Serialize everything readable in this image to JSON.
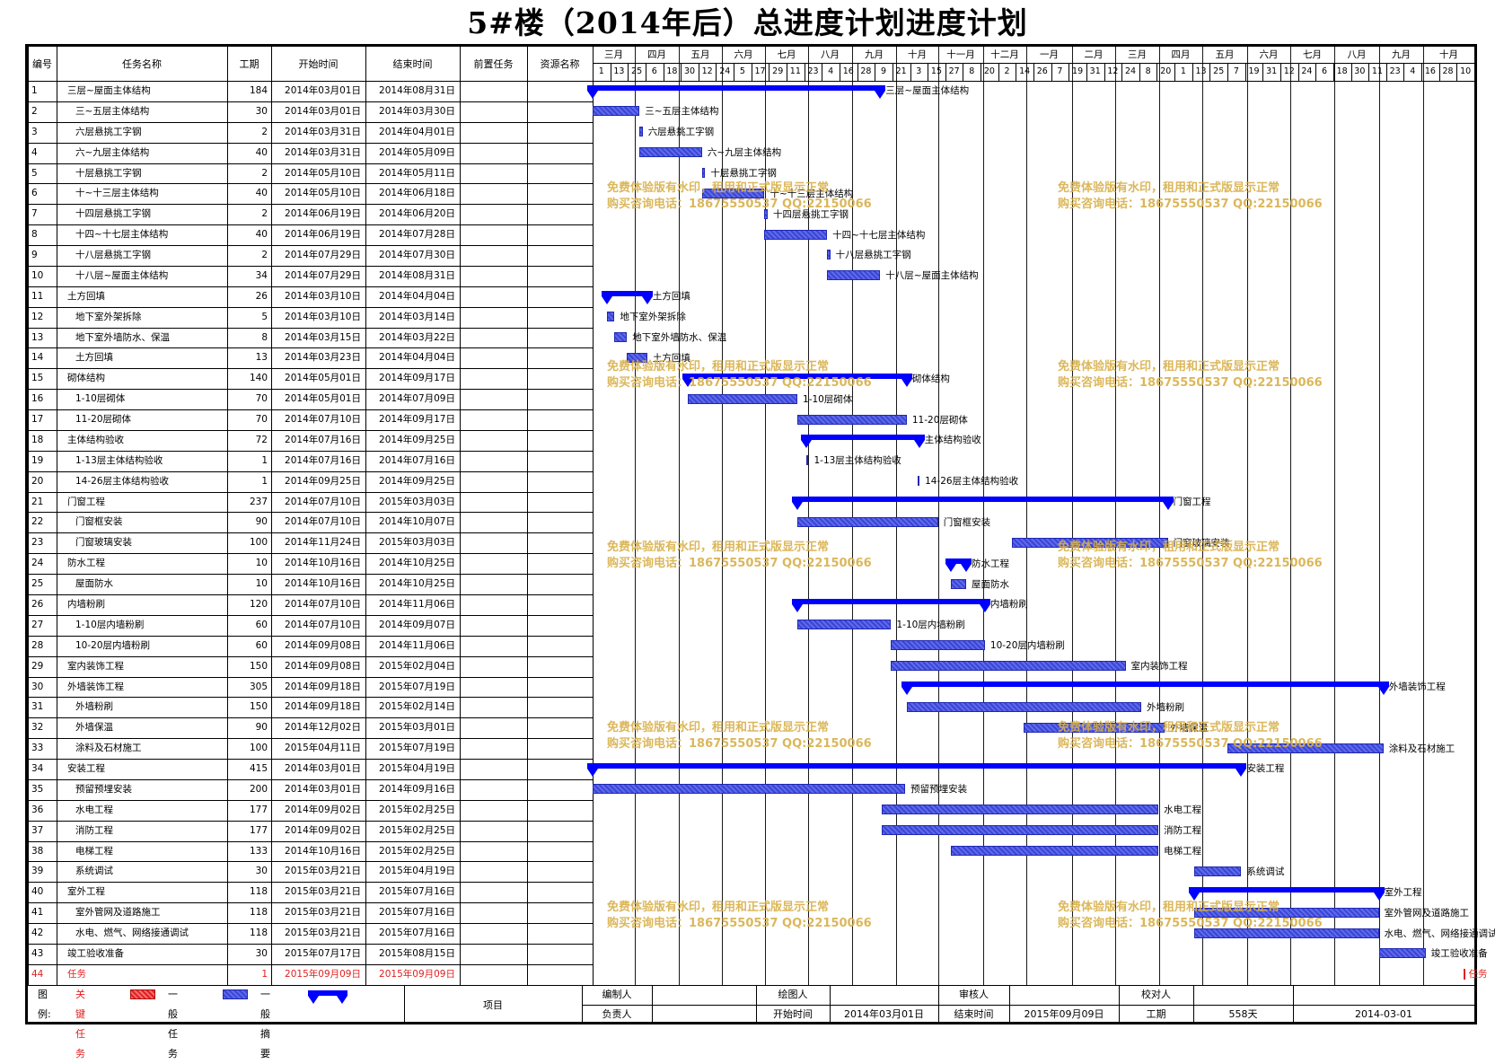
{
  "title": "5#楼（2014年后）总进度计划进度计划",
  "headers": {
    "id": "编号",
    "name": "任务名称",
    "duration": "工期",
    "start": "开始时间",
    "end": "结束时间",
    "predecessor": "前置任务",
    "resource": "资源名称"
  },
  "timeline": {
    "months": [
      "三月",
      "四月",
      "五月",
      "六月",
      "七月",
      "八月",
      "九月",
      "十月",
      "十一月",
      "十二月",
      "一月",
      "二月",
      "三月",
      "四月",
      "五月",
      "六月",
      "七月",
      "八月",
      "九月",
      "十月"
    ],
    "days": [
      "1",
      "13",
      "25",
      "6",
      "18",
      "30",
      "12",
      "24",
      "5",
      "17",
      "29",
      "11",
      "23",
      "4",
      "16",
      "28",
      "9",
      "21",
      "3",
      "15",
      "27",
      "8",
      "20",
      "2",
      "14",
      "26",
      "7",
      "19",
      "31",
      "12",
      "24",
      "8",
      "20",
      "1",
      "13",
      "25",
      "7",
      "19",
      "31",
      "12",
      "24",
      "6",
      "18",
      "30",
      "11",
      "23",
      "4",
      "16",
      "28",
      "10"
    ]
  },
  "tasks": [
    {
      "id": "1",
      "name": "三层~屋面主体结构",
      "indent": 0,
      "dur": "184",
      "start": "2014年03月01日",
      "end": "2014年08月31日",
      "type": "summary"
    },
    {
      "id": "2",
      "name": "三~五层主体结构",
      "indent": 1,
      "dur": "30",
      "start": "2014年03月01日",
      "end": "2014年03月30日",
      "type": "task"
    },
    {
      "id": "3",
      "name": "六层悬挑工字钢",
      "indent": 1,
      "dur": "2",
      "start": "2014年03月31日",
      "end": "2014年04月01日",
      "type": "task"
    },
    {
      "id": "4",
      "name": "六~九层主体结构",
      "indent": 1,
      "dur": "40",
      "start": "2014年03月31日",
      "end": "2014年05月09日",
      "type": "task"
    },
    {
      "id": "5",
      "name": "十层悬挑工字钢",
      "indent": 1,
      "dur": "2",
      "start": "2014年05月10日",
      "end": "2014年05月11日",
      "type": "task"
    },
    {
      "id": "6",
      "name": "十~十三层主体结构",
      "indent": 1,
      "dur": "40",
      "start": "2014年05月10日",
      "end": "2014年06月18日",
      "type": "task"
    },
    {
      "id": "7",
      "name": "十四层悬挑工字钢",
      "indent": 1,
      "dur": "2",
      "start": "2014年06月19日",
      "end": "2014年06月20日",
      "type": "task"
    },
    {
      "id": "8",
      "name": "十四~十七层主体结构",
      "indent": 1,
      "dur": "40",
      "start": "2014年06月19日",
      "end": "2014年07月28日",
      "type": "task"
    },
    {
      "id": "9",
      "name": "十八层悬挑工字钢",
      "indent": 1,
      "dur": "2",
      "start": "2014年07月29日",
      "end": "2014年07月30日",
      "type": "task"
    },
    {
      "id": "10",
      "name": "十八层~屋面主体结构",
      "indent": 1,
      "dur": "34",
      "start": "2014年07月29日",
      "end": "2014年08月31日",
      "type": "task"
    },
    {
      "id": "11",
      "name": "土方回填",
      "indent": 0,
      "dur": "26",
      "start": "2014年03月10日",
      "end": "2014年04月04日",
      "type": "summary"
    },
    {
      "id": "12",
      "name": "地下室外架拆除",
      "indent": 1,
      "dur": "5",
      "start": "2014年03月10日",
      "end": "2014年03月14日",
      "type": "task"
    },
    {
      "id": "13",
      "name": "地下室外墙防水、保温",
      "indent": 1,
      "dur": "8",
      "start": "2014年03月15日",
      "end": "2014年03月22日",
      "type": "task"
    },
    {
      "id": "14",
      "name": "土方回填",
      "indent": 1,
      "dur": "13",
      "start": "2014年03月23日",
      "end": "2014年04月04日",
      "type": "task"
    },
    {
      "id": "15",
      "name": "砌体结构",
      "indent": 0,
      "dur": "140",
      "start": "2014年05月01日",
      "end": "2014年09月17日",
      "type": "summary"
    },
    {
      "id": "16",
      "name": "1-10层砌体",
      "indent": 1,
      "dur": "70",
      "start": "2014年05月01日",
      "end": "2014年07月09日",
      "type": "task"
    },
    {
      "id": "17",
      "name": "11-20层砌体",
      "indent": 1,
      "dur": "70",
      "start": "2014年07月10日",
      "end": "2014年09月17日",
      "type": "task"
    },
    {
      "id": "18",
      "name": "主体结构验收",
      "indent": 0,
      "dur": "72",
      "start": "2014年07月16日",
      "end": "2014年09月25日",
      "type": "summary"
    },
    {
      "id": "19",
      "name": "1-13层主体结构验收",
      "indent": 1,
      "dur": "1",
      "start": "2014年07月16日",
      "end": "2014年07月16日",
      "type": "task"
    },
    {
      "id": "20",
      "name": "14-26层主体结构验收",
      "indent": 1,
      "dur": "1",
      "start": "2014年09月25日",
      "end": "2014年09月25日",
      "type": "task"
    },
    {
      "id": "21",
      "name": "门窗工程",
      "indent": 0,
      "dur": "237",
      "start": "2014年07月10日",
      "end": "2015年03月03日",
      "type": "summary"
    },
    {
      "id": "22",
      "name": "门窗框安装",
      "indent": 1,
      "dur": "90",
      "start": "2014年07月10日",
      "end": "2014年10月07日",
      "type": "task"
    },
    {
      "id": "23",
      "name": "门窗玻璃安装",
      "indent": 1,
      "dur": "100",
      "start": "2014年11月24日",
      "end": "2015年03月03日",
      "type": "task"
    },
    {
      "id": "24",
      "name": "防水工程",
      "indent": 0,
      "dur": "10",
      "start": "2014年10月16日",
      "end": "2014年10月25日",
      "type": "summary"
    },
    {
      "id": "25",
      "name": "屋面防水",
      "indent": 1,
      "dur": "10",
      "start": "2014年10月16日",
      "end": "2014年10月25日",
      "type": "task"
    },
    {
      "id": "26",
      "name": "内墙粉刷",
      "indent": 0,
      "dur": "120",
      "start": "2014年07月10日",
      "end": "2014年11月06日",
      "type": "summary"
    },
    {
      "id": "27",
      "name": "1-10层内墙粉刷",
      "indent": 1,
      "dur": "60",
      "start": "2014年07月10日",
      "end": "2014年09月07日",
      "type": "task"
    },
    {
      "id": "28",
      "name": "10-20层内墙粉刷",
      "indent": 1,
      "dur": "60",
      "start": "2014年09月08日",
      "end": "2014年11月06日",
      "type": "task"
    },
    {
      "id": "29",
      "name": "室内装饰工程",
      "indent": 0,
      "dur": "150",
      "start": "2014年09月08日",
      "end": "2015年02月04日",
      "type": "task"
    },
    {
      "id": "30",
      "name": "外墙装饰工程",
      "indent": 0,
      "dur": "305",
      "start": "2014年09月18日",
      "end": "2015年07月19日",
      "type": "summary"
    },
    {
      "id": "31",
      "name": "外墙粉刷",
      "indent": 1,
      "dur": "150",
      "start": "2014年09月18日",
      "end": "2015年02月14日",
      "type": "task"
    },
    {
      "id": "32",
      "name": "外墙保温",
      "indent": 1,
      "dur": "90",
      "start": "2014年12月02日",
      "end": "2015年03月01日",
      "type": "task"
    },
    {
      "id": "33",
      "name": "涂料及石材施工",
      "indent": 1,
      "dur": "100",
      "start": "2015年04月11日",
      "end": "2015年07月19日",
      "type": "task"
    },
    {
      "id": "34",
      "name": "安装工程",
      "indent": 0,
      "dur": "415",
      "start": "2014年03月01日",
      "end": "2015年04月19日",
      "type": "summary"
    },
    {
      "id": "35",
      "name": "预留预埋安装",
      "indent": 1,
      "dur": "200",
      "start": "2014年03月01日",
      "end": "2014年09月16日",
      "type": "task"
    },
    {
      "id": "36",
      "name": "水电工程",
      "indent": 1,
      "dur": "177",
      "start": "2014年09月02日",
      "end": "2015年02月25日",
      "type": "task"
    },
    {
      "id": "37",
      "name": "消防工程",
      "indent": 1,
      "dur": "177",
      "start": "2014年09月02日",
      "end": "2015年02月25日",
      "type": "task"
    },
    {
      "id": "38",
      "name": "电梯工程",
      "indent": 1,
      "dur": "133",
      "start": "2014年10月16日",
      "end": "2015年02月25日",
      "type": "task"
    },
    {
      "id": "39",
      "name": "系统调试",
      "indent": 1,
      "dur": "30",
      "start": "2015年03月21日",
      "end": "2015年04月19日",
      "type": "task"
    },
    {
      "id": "40",
      "name": "室外工程",
      "indent": 0,
      "dur": "118",
      "start": "2015年03月21日",
      "end": "2015年07月16日",
      "type": "summary"
    },
    {
      "id": "41",
      "name": "室外管网及道路施工",
      "indent": 1,
      "dur": "118",
      "start": "2015年03月21日",
      "end": "2015年07月16日",
      "type": "task"
    },
    {
      "id": "42",
      "name": "水电、燃气、网络接通调试",
      "indent": 1,
      "dur": "118",
      "start": "2015年03月21日",
      "end": "2015年07月16日",
      "type": "task"
    },
    {
      "id": "43",
      "name": "竣工验收准备",
      "indent": 0,
      "dur": "30",
      "start": "2015年07月17日",
      "end": "2015年08月15日",
      "type": "task"
    },
    {
      "id": "44",
      "name": "任务",
      "indent": 0,
      "dur": "1",
      "start": "2015年09月09日",
      "end": "2015年09月09日",
      "type": "critical"
    }
  ],
  "watermark": {
    "line1": "免费体验版有水印，租用和正式版显示正常",
    "line2": "购买咨询电话：18675550537 QQ:22150066"
  },
  "footer": {
    "legend_label": "图例:",
    "critical": "关键任务",
    "general": "一般任务",
    "summary": "一般摘要",
    "project": "项目",
    "compiler": "编制人",
    "drawer": "绘图人",
    "reviewer": "审核人",
    "checker": "校对人",
    "responsible": "负责人",
    "start_label": "开始时间",
    "start_value": "2014年03月01日",
    "end_label": "结束时间",
    "end_value": "2015年09月09日",
    "duration_label": "工期",
    "duration_value": "558天",
    "date_value": "2014-03-01"
  },
  "colors": {
    "summary": "#0000ff",
    "task": "#4b55e0",
    "critical": "#e02020",
    "watermark": "#d8b04a"
  }
}
